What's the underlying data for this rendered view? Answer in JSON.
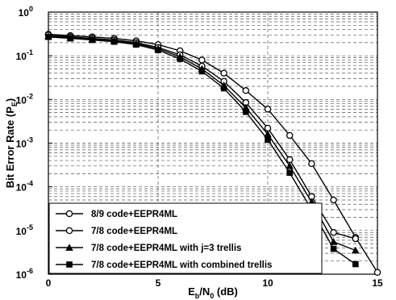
{
  "chart_data": {
    "type": "line",
    "title": "",
    "xlabel": {
      "base": "E",
      "sub1": "b",
      "mid": "/N",
      "sub2": "0",
      "tail": " (dB)"
    },
    "ylabel": {
      "base": "Bit Error Rate (P",
      "sub": "E",
      "tail": ")"
    },
    "xlim": [
      0,
      15
    ],
    "ylim_log10": [
      -6,
      0
    ],
    "yscale": "log",
    "grid": true,
    "legend_position": "bottom-left",
    "x_ticks": [
      "0",
      "5",
      "10",
      "15"
    ],
    "y_ticks": [
      {
        "base": "10",
        "exp": "0"
      },
      {
        "base": "10",
        "exp": "-1"
      },
      {
        "base": "10",
        "exp": "-2"
      },
      {
        "base": "10",
        "exp": "-3"
      },
      {
        "base": "10",
        "exp": "-4"
      },
      {
        "base": "10",
        "exp": "-5"
      },
      {
        "base": "10",
        "exp": "-6"
      }
    ],
    "series": [
      {
        "name": "8/9 code+EEPR4ML",
        "marker": "circle",
        "x": [
          0,
          1,
          2,
          3,
          4,
          5,
          6,
          7,
          8,
          9,
          10,
          11,
          12,
          13,
          14,
          15
        ],
        "y": [
          0.31,
          0.29,
          0.27,
          0.25,
          0.22,
          0.18,
          0.13,
          0.08,
          0.04,
          0.016,
          0.006,
          0.0015,
          0.00034,
          5e-05,
          7e-06,
          1.1e-06
        ]
      },
      {
        "name": "7/8 code+EEPR4ML",
        "marker": "circle",
        "x": [
          0,
          1,
          2,
          3,
          4,
          5,
          6,
          7,
          8,
          9,
          10,
          11,
          12,
          13,
          14
        ],
        "y": [
          0.3,
          0.27,
          0.25,
          0.23,
          0.2,
          0.155,
          0.105,
          0.058,
          0.026,
          0.0085,
          0.0022,
          0.00042,
          6e-05,
          9e-06,
          6.5e-06
        ]
      },
      {
        "name": "7/8 code+EEPR4ML with j=3 trellis",
        "marker": "triangle",
        "x": [
          0,
          1,
          2,
          3,
          4,
          5,
          6,
          7,
          8,
          9,
          10,
          11,
          12,
          13,
          14
        ],
        "y": [
          0.28,
          0.26,
          0.24,
          0.22,
          0.19,
          0.145,
          0.095,
          0.05,
          0.021,
          0.0065,
          0.0016,
          0.0003,
          4.5e-05,
          5.5e-06,
          3.5e-06
        ]
      },
      {
        "name": "7/8 code+EEPR4ML with combined trellis",
        "marker": "square",
        "x": [
          0,
          1,
          2,
          3,
          4,
          5,
          6,
          7,
          8,
          9,
          10,
          11,
          12,
          13,
          14
        ],
        "y": [
          0.27,
          0.25,
          0.23,
          0.21,
          0.18,
          0.135,
          0.085,
          0.044,
          0.018,
          0.0052,
          0.0012,
          0.00021,
          3e-05,
          3.8e-06,
          1.7e-06
        ]
      }
    ]
  }
}
